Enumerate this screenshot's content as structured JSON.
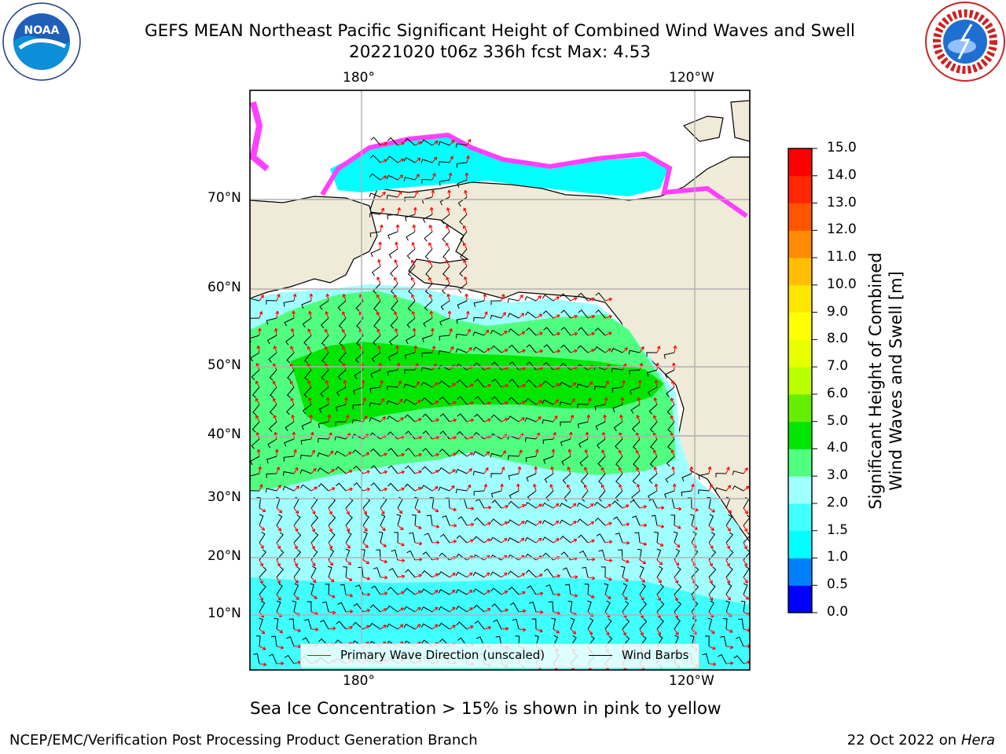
{
  "header": {
    "title_line1": "GEFS MEAN Northeast Pacific Significant Height of Combined Wind Waves and Swell",
    "title_line2": "20221020 t06z 336h fcst   Max: 4.53"
  },
  "logos": {
    "left": {
      "icon": "noaa-logo-icon",
      "text": "NOAA",
      "ring_text": "NATIONAL OCEANIC AND ATMOSPHERIC ADMINISTRATION"
    },
    "right": {
      "icon": "nws-logo-icon",
      "ring_text": "NATIONAL WEATHER SERVICE"
    }
  },
  "map": {
    "top_lon_labels": [
      "180°",
      "120°W"
    ],
    "bottom_lon_labels": [
      "180°",
      "120°W"
    ],
    "lat_labels": [
      "70°N",
      "60°N",
      "50°N",
      "40°N",
      "30°N",
      "20°N",
      "10°N"
    ],
    "colors": {
      "land": "#efebd8",
      "grid": "#b0b0b0",
      "wave_arrows": "#ff0000",
      "wind_barbs": "#000000"
    }
  },
  "legend": {
    "items": [
      {
        "label": "Primary Wave Direction (unscaled)",
        "color": "#ff0000"
      },
      {
        "label": "Wind Barbs",
        "color": "#000000"
      }
    ]
  },
  "colorbar": {
    "title_line1": "Significant Height of Combined",
    "title_line2": "Wind Waves and Swell [m]",
    "ticks": [
      "0.0",
      "0.5",
      "1.0",
      "1.5",
      "2.0",
      "3.0",
      "4.0",
      "5.0",
      "6.0",
      "7.0",
      "8.0",
      "9.0",
      "10.0",
      "11.0",
      "12.0",
      "13.0",
      "14.0",
      "15.0"
    ],
    "colors": [
      "#0000ff",
      "#007fff",
      "#00ffff",
      "#40ffff",
      "#a0ffff",
      "#50ff80",
      "#00e600",
      "#66ee00",
      "#bbff00",
      "#e8ff00",
      "#ffff00",
      "#ffe600",
      "#ffbf00",
      "#ff8c00",
      "#ff5500",
      "#ff2800",
      "#ff0000"
    ]
  },
  "footer": {
    "caption": "Sea Ice Concentration > 15% is shown in pink to yellow",
    "left": "NCEP/EMC/Verification Post Processing Product Generation Branch",
    "right_prefix": "22 Oct 2022 on ",
    "right_host": "Hera"
  }
}
